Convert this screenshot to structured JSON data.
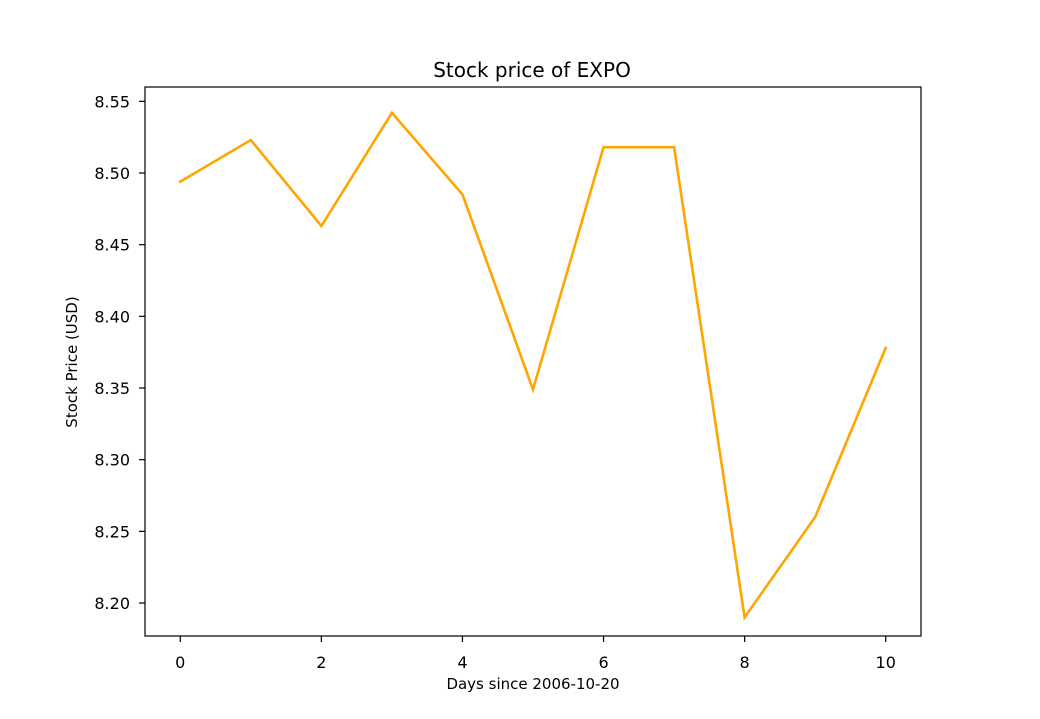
{
  "chart_data": {
    "type": "line",
    "title": "Stock price of EXPO",
    "xlabel": "Days since 2006-10-20",
    "ylabel": "Stock Price (USD)",
    "xlim": [
      -0.5,
      10.5
    ],
    "ylim": [
      8.177,
      8.56
    ],
    "xticks": [
      0,
      2,
      4,
      6,
      8,
      10
    ],
    "xtick_labels": [
      "0",
      "2",
      "4",
      "6",
      "8",
      "10"
    ],
    "yticks": [
      8.2,
      8.25,
      8.3,
      8.35,
      8.4,
      8.45,
      8.5,
      8.55
    ],
    "ytick_labels": [
      "8.20",
      "8.25",
      "8.30",
      "8.35",
      "8.40",
      "8.45",
      "8.50",
      "8.55"
    ],
    "grid": false,
    "legend": "none",
    "series": [
      {
        "color": "#ffa500",
        "x": [
          0,
          1,
          2,
          3,
          4,
          5,
          6,
          7,
          8,
          9,
          10
        ],
        "values": [
          8.494,
          8.523,
          8.463,
          8.542,
          8.485,
          8.349,
          8.518,
          8.518,
          8.19,
          8.26,
          8.378
        ]
      }
    ]
  }
}
